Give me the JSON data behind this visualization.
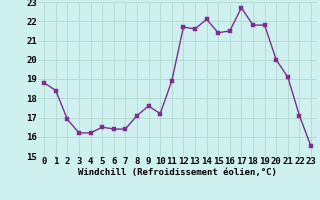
{
  "x": [
    0,
    1,
    2,
    3,
    4,
    5,
    6,
    7,
    8,
    9,
    10,
    11,
    12,
    13,
    14,
    15,
    16,
    17,
    18,
    19,
    20,
    21,
    22,
    23
  ],
  "y": [
    18.8,
    18.4,
    16.9,
    16.2,
    16.2,
    16.5,
    16.4,
    16.4,
    17.1,
    17.6,
    17.2,
    18.9,
    21.7,
    21.6,
    22.1,
    21.4,
    21.5,
    22.7,
    21.8,
    21.8,
    20.0,
    19.1,
    17.1,
    15.5
  ],
  "line_color": "#7b2f8f",
  "marker_color": "#7b2f8f",
  "bg_color": "#cef0ee",
  "grid_color": "#b0d8d0",
  "xlabel": "Windchill (Refroidissement éolien,°C)",
  "ylim": [
    15,
    23
  ],
  "xlim": [
    -0.5,
    23.5
  ],
  "yticks": [
    15,
    16,
    17,
    18,
    19,
    20,
    21,
    22,
    23
  ],
  "xticks": [
    0,
    1,
    2,
    3,
    4,
    5,
    6,
    7,
    8,
    9,
    10,
    11,
    12,
    13,
    14,
    15,
    16,
    17,
    18,
    19,
    20,
    21,
    22,
    23
  ],
  "xlabel_fontsize": 6.5,
  "tick_fontsize": 6.5,
  "line_width": 1.0,
  "marker_size": 2.2
}
